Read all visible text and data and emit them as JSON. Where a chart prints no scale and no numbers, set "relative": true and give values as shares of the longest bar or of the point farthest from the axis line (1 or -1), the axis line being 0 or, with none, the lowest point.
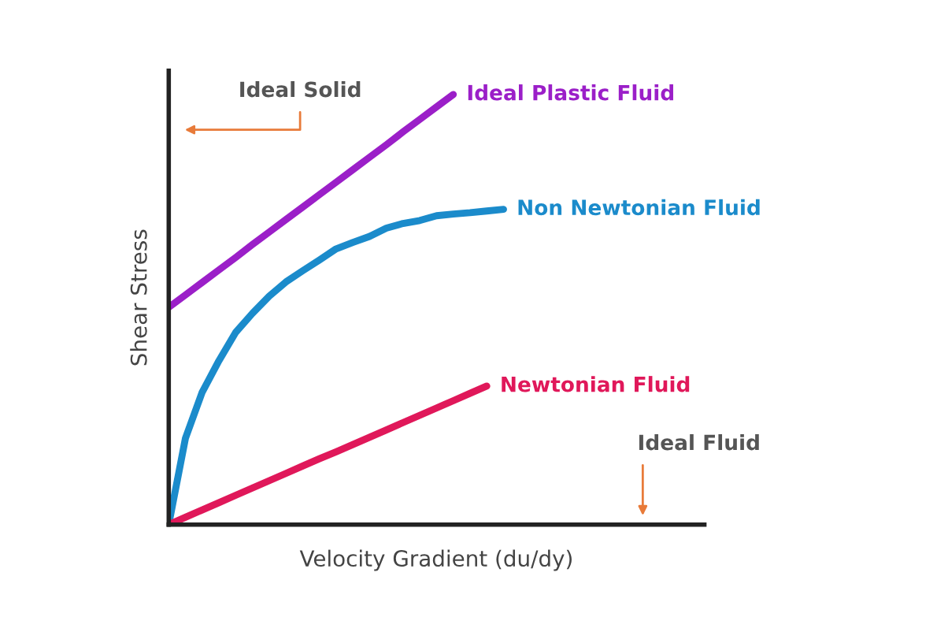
{
  "chart_data": {
    "type": "line",
    "relative": true,
    "xlabel": "Velocity Gradient (du/dy)",
    "ylabel": "Shear Stress",
    "legend": false,
    "marker": "none",
    "line_style": "solid",
    "categories": [
      null,
      null,
      null,
      null,
      null,
      null,
      null,
      null,
      null,
      null,
      null,
      null,
      null,
      null,
      null,
      null,
      null,
      null,
      null,
      null,
      null,
      null,
      null,
      null,
      null,
      null,
      null,
      null,
      null,
      null,
      null,
      null,
      null
    ],
    "series": [
      {
        "name": "Ideal Plastic Fluid",
        "color": "#9b1fc8",
        "values": [
          0.505,
          0.534,
          0.563,
          0.592,
          0.621,
          0.651,
          0.68,
          0.709,
          0.738,
          0.767,
          0.796,
          0.825,
          0.854,
          0.883,
          0.913,
          0.942,
          0.971,
          1,
          null,
          null,
          null,
          null,
          null,
          null,
          null,
          null,
          null,
          null,
          null,
          null,
          null,
          null,
          null
        ]
      },
      {
        "name": "Non Newtonian Fluid",
        "color": "#1b8bcb",
        "values": [
          0,
          0.201,
          0.308,
          0.381,
          0.447,
          0.491,
          0.531,
          0.564,
          0.59,
          0.615,
          0.641,
          0.656,
          0.67,
          0.689,
          0.7,
          0.707,
          0.718,
          0.722,
          0.725,
          0.729,
          0.733,
          null,
          null,
          null,
          null,
          null,
          null,
          null,
          null,
          null,
          null,
          null,
          null
        ]
      },
      {
        "name": "Newtonian Fluid",
        "color": "#e0185a",
        "values": [
          0,
          0.017,
          0.034,
          0.051,
          0.068,
          0.085,
          0.102,
          0.119,
          0.136,
          0.153,
          0.169,
          0.186,
          0.203,
          0.22,
          0.237,
          0.254,
          0.271,
          0.288,
          0.305,
          0.322,
          null,
          null,
          null,
          null,
          null,
          null,
          null,
          null,
          null,
          null,
          null,
          null,
          null
        ]
      }
    ],
    "annotations": [
      "Ideal Solid",
      "Ideal Fluid"
    ]
  }
}
